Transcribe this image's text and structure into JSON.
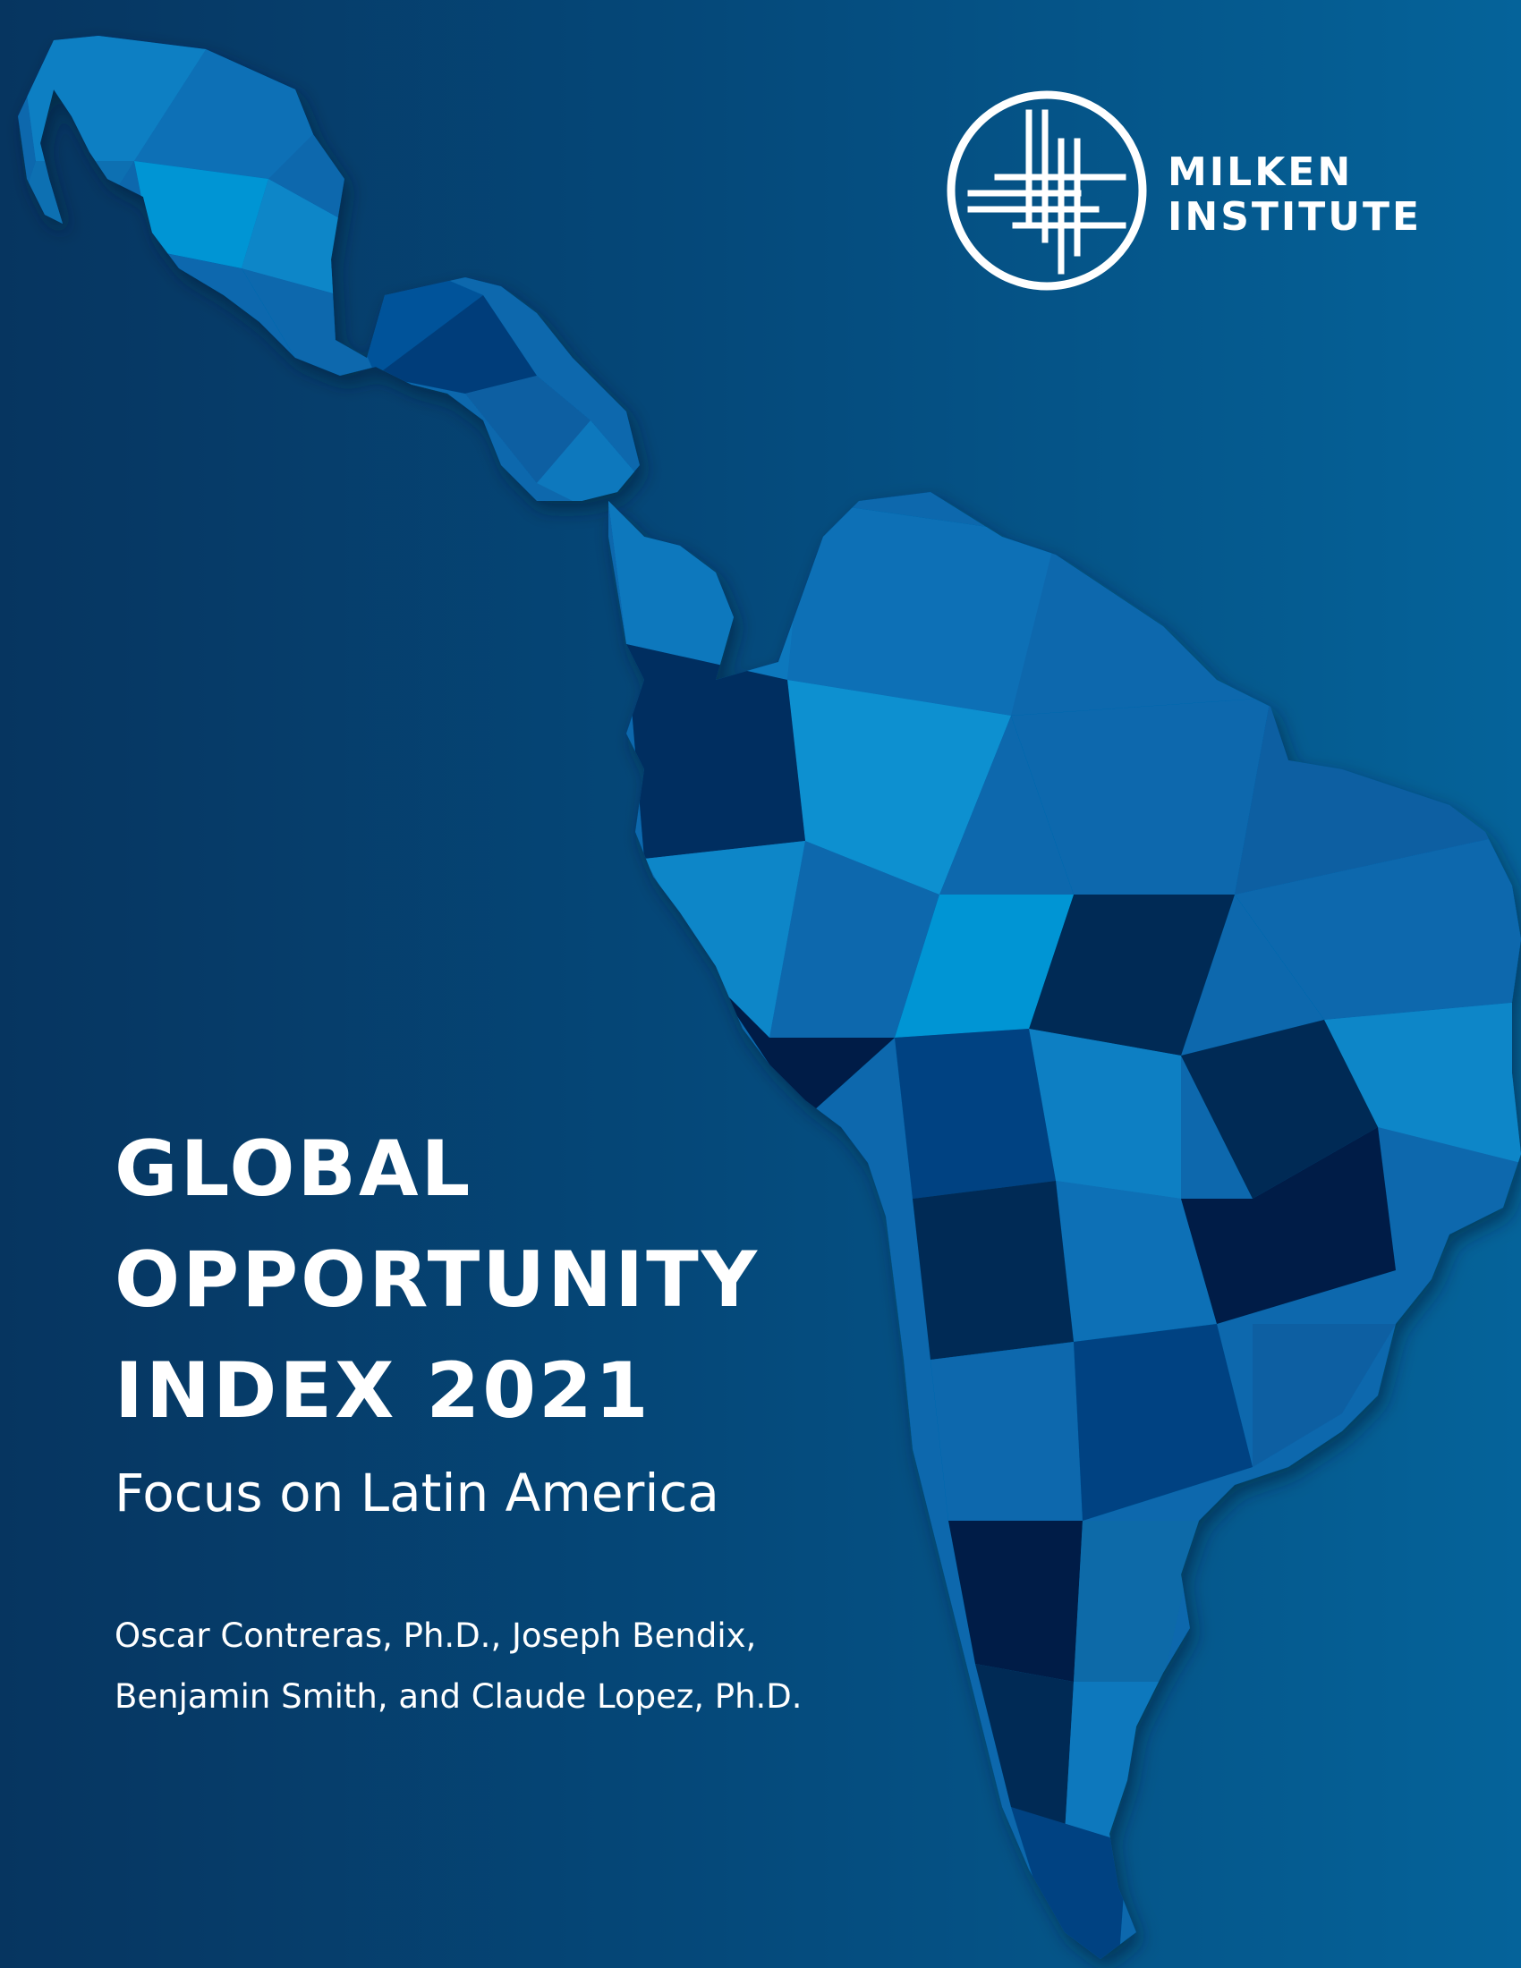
{
  "cover": {
    "colors": {
      "background_dark": "#063560",
      "background_light": "#05639a",
      "map_light": "#0a86c8",
      "map_mid": "#0767ad",
      "map_dark": "#032a55",
      "text": "#ffffff"
    },
    "logo": {
      "icon": "milken-lattice-circle-icon",
      "line1": "MILKEN",
      "line2": "INSTITUTE"
    },
    "title": {
      "line1": "GLOBAL",
      "line2": "OPPORTUNITY",
      "line3": "INDEX 2021"
    },
    "subtitle": "Focus on Latin America",
    "authors": {
      "line1": "Oscar Contreras, Ph.D.,  Joseph Bendix,",
      "line2": "Benjamin Smith, and Claude Lopez, Ph.D."
    },
    "illustration": "latin-america-map-icon"
  }
}
